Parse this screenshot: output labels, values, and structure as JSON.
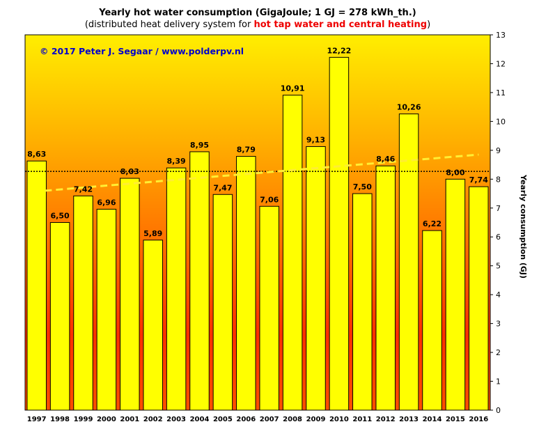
{
  "header": {
    "title": "Yearly hot water consumption  (GigaJoule; 1 GJ = 278 kWh_th.)",
    "subtitle_pre": "(distributed heat delivery system for ",
    "subtitle_highlight": "hot tap water and central heating",
    "subtitle_post": ")"
  },
  "copyright": "© 2017 Peter J. Segaar / www.polderpv.nl",
  "colors": {
    "bar_fill": "#ffff00",
    "trend_line": "#ffee33",
    "average_line": "#000000",
    "copyright_text": "#0000cc",
    "highlight_text": "#ee0000"
  },
  "chart_data": {
    "type": "bar",
    "categories": [
      "1997",
      "1998",
      "1999",
      "2000",
      "2001",
      "2002",
      "2003",
      "2004",
      "2005",
      "2006",
      "2007",
      "2008",
      "2009",
      "2010",
      "2011",
      "2012",
      "2013",
      "2014",
      "2015",
      "2016"
    ],
    "values": [
      8.63,
      6.5,
      7.42,
      6.96,
      8.03,
      5.89,
      8.39,
      8.95,
      7.47,
      8.79,
      7.06,
      10.91,
      9.13,
      12.22,
      7.5,
      8.46,
      10.26,
      6.22,
      8.0,
      7.74
    ],
    "value_labels": [
      "8,63",
      "6,50",
      "7,42",
      "6,96",
      "8,03",
      "5,89",
      "8,39",
      "8,95",
      "7,47",
      "8,79",
      "7,06",
      "10,91",
      "9,13",
      "12,22",
      "7,50",
      "8,46",
      "10,26",
      "6,22",
      "8,00",
      "7,74"
    ],
    "ylabel": "Yearly consumption (GJ)",
    "y_axis_side": "right",
    "ylim": [
      0,
      13
    ],
    "yticks": [
      "0",
      "1",
      "2",
      "3",
      "4",
      "5",
      "6",
      "7",
      "8",
      "9",
      "10",
      "11",
      "12",
      "13"
    ],
    "average_line": {
      "style": "dotted",
      "value": 8.27
    },
    "trend_line": {
      "style": "dashed",
      "start_value": 7.6,
      "end_value": 8.85
    },
    "grid": false
  }
}
